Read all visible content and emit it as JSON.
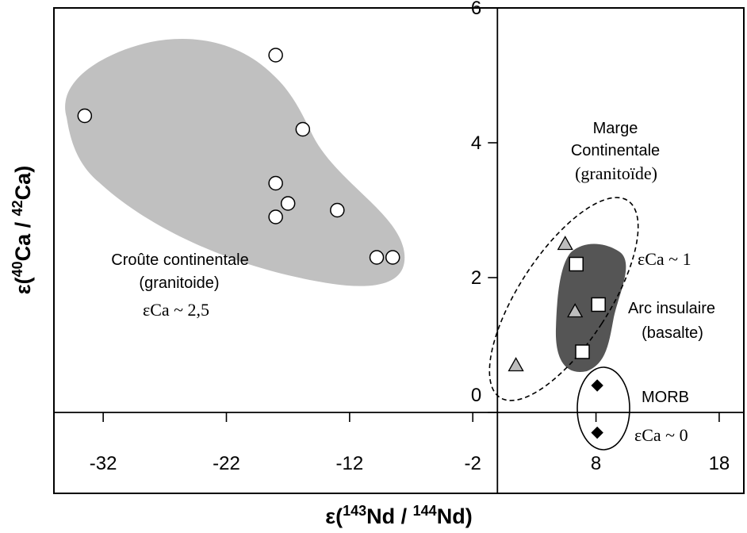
{
  "chart_data": {
    "type": "scatter",
    "xlabel": {
      "prefix": "ε(",
      "sup1": "143",
      "mid": "Nd / ",
      "sup2": "144",
      "suffix": "Nd)"
    },
    "ylabel": {
      "prefix": "ε(",
      "sup1": "40",
      "mid": "Ca / ",
      "sup2": "42",
      "suffix": "Ca)"
    },
    "xlim": [
      -36,
      20
    ],
    "ylim": [
      -1.2,
      6.0
    ],
    "xticks": [
      -32,
      -22,
      -12,
      -2,
      8,
      18
    ],
    "yticks": [
      0,
      2,
      4,
      6
    ],
    "xtick_labels": [
      "-32",
      "-22",
      "-12",
      "-2",
      "8",
      "18"
    ],
    "ytick_labels": [
      "0",
      "2",
      "4",
      "6"
    ],
    "series": [
      {
        "marker": "circle",
        "fill": "#ffffff",
        "points": [
          [
            -33.5,
            4.4
          ],
          [
            -18,
            5.3
          ],
          [
            -15.8,
            4.2
          ],
          [
            -18,
            3.4
          ],
          [
            -17,
            3.1
          ],
          [
            -18,
            2.9
          ],
          [
            -13,
            3.0
          ],
          [
            -9.8,
            2.3
          ],
          [
            -8.5,
            2.3
          ]
        ]
      },
      {
        "marker": "triangle",
        "fill": "#bdbdbd",
        "points": [
          [
            5.5,
            2.5
          ],
          [
            6.3,
            1.5
          ],
          [
            1.5,
            0.7
          ]
        ]
      },
      {
        "marker": "square",
        "fill": "#ffffff",
        "points": [
          [
            6.4,
            2.2
          ],
          [
            8.2,
            1.6
          ],
          [
            6.9,
            0.9
          ]
        ]
      },
      {
        "marker": "diamond",
        "fill": "#000000",
        "points": [
          [
            8.1,
            0.4
          ],
          [
            8.1,
            -0.3
          ]
        ]
      }
    ],
    "regions": [
      {
        "name": "crust",
        "fill": "#c0c0c0",
        "stroke": "none",
        "dash": false
      },
      {
        "name": "arc",
        "fill": "#555555",
        "stroke": "none",
        "dash": false
      },
      {
        "name": "margin",
        "fill": "none",
        "stroke": "#000000",
        "dash": true
      },
      {
        "name": "morb",
        "fill": "none",
        "stroke": "#000000",
        "dash": false
      }
    ],
    "annotations": {
      "crust_title": "Croûte continentale",
      "crust_type": "(granitoide)",
      "crust_eps": "εCa ~ 2,5",
      "margin_line1": "Marge",
      "margin_line2": "Continentale",
      "margin_line3": "(granitoïde)",
      "margin_eps": "εCa ~ 1",
      "arc_line1": "Arc insulaire",
      "arc_line2": "(basalte)",
      "morb_title": "MORB",
      "morb_eps": "εCa ~ 0"
    }
  }
}
